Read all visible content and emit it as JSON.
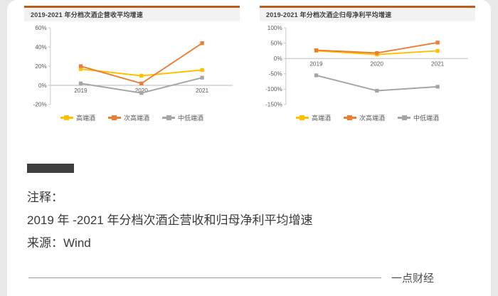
{
  "note": {
    "label": "注释：",
    "text": "2019 年 -2021 年分档次酒企营收和归母净利平均增速",
    "source": "来源：Wind"
  },
  "footer": {
    "brand": "一点财经"
  },
  "colors": {
    "accent_border": "#ba5e20",
    "section_marker": "#3f3f3f",
    "high_end": "#FFC000",
    "sub_high_end": "#ED7D31",
    "mid_low_end": "#A5A5A5"
  },
  "chart_data": [
    {
      "type": "line",
      "title": "2019-2021 年分档次酒企营收平均增速",
      "categories": [
        "2019",
        "2020",
        "2021"
      ],
      "series": [
        {
          "name": "高端酒",
          "color": "#FFC000",
          "values": [
            17,
            10,
            16
          ]
        },
        {
          "name": "次高端酒",
          "color": "#ED7D31",
          "values": [
            20,
            2,
            44
          ]
        },
        {
          "name": "中低端酒",
          "color": "#A5A5A5",
          "values": [
            2,
            -8,
            8
          ]
        }
      ],
      "ylabel": "",
      "xlabel": "",
      "ylim": [
        -20,
        60
      ],
      "yticks": [
        -20,
        0,
        20,
        40,
        60
      ],
      "grid": false,
      "legend_position": "bottom"
    },
    {
      "type": "line",
      "title": "2019-2021 年分档次酒企归母净利平均增速",
      "categories": [
        "2019",
        "2020",
        "2021"
      ],
      "series": [
        {
          "name": "高端酒",
          "color": "#FFC000",
          "values": [
            25,
            13,
            25
          ]
        },
        {
          "name": "次高端酒",
          "color": "#ED7D31",
          "values": [
            27,
            18,
            52
          ]
        },
        {
          "name": "中低端酒",
          "color": "#A5A5A5",
          "values": [
            -55,
            -105,
            -92
          ]
        }
      ],
      "ylabel": "",
      "xlabel": "",
      "ylim": [
        -150,
        100
      ],
      "yticks": [
        -150,
        -100,
        -50,
        0,
        50,
        100
      ],
      "grid": false,
      "legend_position": "bottom"
    }
  ]
}
